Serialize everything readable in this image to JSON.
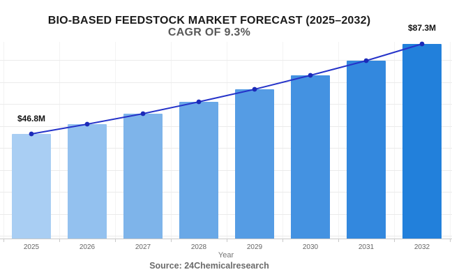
{
  "header": {
    "title": "BIO-BASED FEEDSTOCK MARKET FORECAST (2025–2032)",
    "subtitle": "CAGR OF 9.3%"
  },
  "chart_data": {
    "type": "bar",
    "categories": [
      "2025",
      "2026",
      "2027",
      "2028",
      "2029",
      "2030",
      "2031",
      "2032"
    ],
    "values": [
      46.8,
      51.2,
      55.9,
      61.1,
      66.8,
      73.0,
      79.8,
      87.3
    ],
    "title": "BIO-BASED FEEDSTOCK MARKET FORECAST (2025–2032)",
    "subtitle": "CAGR OF 9.3%",
    "xlabel": "Year",
    "ylabel": "",
    "unit_hint": "$M",
    "ylim": [
      0,
      90
    ],
    "grid": true,
    "legend_position": "none",
    "overlay_line": true,
    "annotations": {
      "first_bar_label": "$46.8M",
      "last_bar_label": "$87.3M",
      "last_bar_label_visible": "$87"
    },
    "bar_colors": [
      "#a9cef3",
      "#93c1ef",
      "#7eb4ea",
      "#69a8e7",
      "#559ce4",
      "#4492e1",
      "#3388de",
      "#2280db"
    ],
    "line_color": "#2533c9",
    "marker_color": "#1b2ab8",
    "source": "Source: 24Chemicalresearch"
  },
  "colors": {
    "title_text": "#1a1a1a",
    "subtitle_text": "#595959",
    "tick_text": "#666666",
    "caption_text": "#6b6b6b",
    "gridline": "#ebebeb",
    "axis_line": "#c9c9c9"
  }
}
